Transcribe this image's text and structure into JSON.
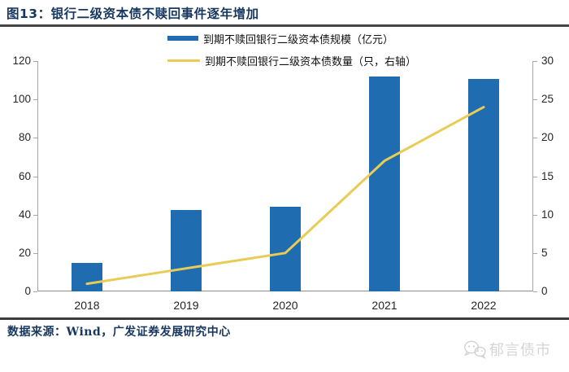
{
  "title": "图13：银行二级资本债不赎回事件逐年增加",
  "legend": [
    {
      "label": "到期不赎回银行二级资本债规模（亿元）",
      "swatch": "bar"
    },
    {
      "label": "到期不赎回银行二级资本债数量（只，右轴）",
      "swatch": "line"
    }
  ],
  "footer": {
    "source": "数据来源：Wind，广发证券发展研究中心"
  },
  "watermark": {
    "text": "郁言债市",
    "icon": "wechat-icon"
  },
  "colors": {
    "bar": "#1F6CB0",
    "line": "#E8CC55",
    "title": "#17375E",
    "footer": "#17375E",
    "axis": "#A6A6A6",
    "tick_text": "#262626",
    "watermark": "#D5D5D5"
  },
  "chart_data": {
    "type": "bar",
    "subtype": "bar+line dual axis",
    "categories": [
      "2018",
      "2019",
      "2020",
      "2021",
      "2022"
    ],
    "series": [
      {
        "name": "到期不赎回银行二级资本债规模（亿元）",
        "type": "bar",
        "axis": "left",
        "values": [
          15,
          42.5,
          44,
          112,
          110.5
        ]
      },
      {
        "name": "到期不赎回银行二级资本债数量（只，右轴）",
        "type": "line",
        "axis": "right",
        "values": [
          1,
          3,
          5,
          17,
          24
        ]
      }
    ],
    "title": "银行二级资本债不赎回事件逐年增加",
    "xlabel": "",
    "ylabel_left": "亿元",
    "ylabel_right": "只",
    "left_axis": {
      "min": 0,
      "max": 120,
      "step": 20
    },
    "right_axis": {
      "min": 0,
      "max": 30,
      "step": 5
    },
    "grid": false,
    "legend_position": "top"
  }
}
